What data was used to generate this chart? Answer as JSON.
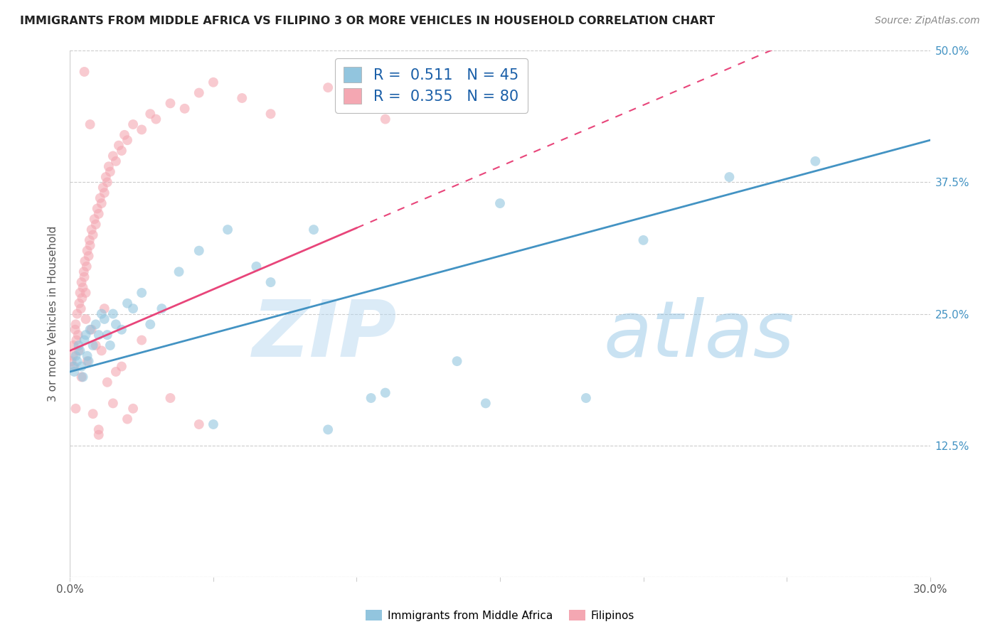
{
  "title": "IMMIGRANTS FROM MIDDLE AFRICA VS FILIPINO 3 OR MORE VEHICLES IN HOUSEHOLD CORRELATION CHART",
  "source": "Source: ZipAtlas.com",
  "ylabel": "3 or more Vehicles in Household",
  "xlim": [
    0.0,
    30.0
  ],
  "ylim": [
    0.0,
    50.0
  ],
  "blue_color": "#92c5de",
  "pink_color": "#f4a7b2",
  "blue_line_color": "#4393c3",
  "pink_line_color": "#e8457a",
  "R_blue": 0.511,
  "N_blue": 45,
  "R_pink": 0.355,
  "N_pink": 80,
  "legend_label_blue": "Immigrants from Middle Africa",
  "legend_label_pink": "Filipinos",
  "watermark_zip": "ZIP",
  "watermark_atlas": "atlas",
  "blue_intercept": 19.5,
  "blue_slope_per30": 22.0,
  "pink_intercept": 21.5,
  "pink_slope_per30": 35.0,
  "pink_solid_end": 10.0,
  "blue_points_x": [
    0.1,
    0.15,
    0.2,
    0.25,
    0.3,
    0.35,
    0.4,
    0.45,
    0.5,
    0.55,
    0.6,
    0.65,
    0.7,
    0.8,
    0.9,
    1.0,
    1.1,
    1.2,
    1.3,
    1.4,
    1.5,
    1.6,
    1.8,
    2.0,
    2.2,
    2.5,
    2.8,
    3.2,
    3.8,
    4.5,
    5.5,
    6.5,
    7.0,
    8.5,
    10.5,
    11.0,
    13.5,
    14.5,
    18.0,
    20.0,
    23.0,
    26.0,
    5.0,
    9.0,
    15.0
  ],
  "blue_points_y": [
    20.0,
    19.5,
    21.0,
    20.5,
    22.0,
    21.5,
    20.0,
    19.0,
    22.5,
    23.0,
    21.0,
    20.5,
    23.5,
    22.0,
    24.0,
    23.0,
    25.0,
    24.5,
    23.0,
    22.0,
    25.0,
    24.0,
    23.5,
    26.0,
    25.5,
    27.0,
    24.0,
    25.5,
    29.0,
    31.0,
    33.0,
    29.5,
    28.0,
    33.0,
    17.0,
    17.5,
    20.5,
    16.5,
    17.0,
    32.0,
    38.0,
    39.5,
    14.5,
    14.0,
    35.5
  ],
  "pink_points_x": [
    0.05,
    0.1,
    0.12,
    0.15,
    0.18,
    0.2,
    0.22,
    0.25,
    0.28,
    0.3,
    0.32,
    0.35,
    0.38,
    0.4,
    0.42,
    0.45,
    0.48,
    0.5,
    0.52,
    0.55,
    0.58,
    0.6,
    0.65,
    0.68,
    0.7,
    0.75,
    0.8,
    0.85,
    0.9,
    0.95,
    1.0,
    1.05,
    1.1,
    1.15,
    1.2,
    1.25,
    1.3,
    1.35,
    1.4,
    1.5,
    1.6,
    1.7,
    1.8,
    1.9,
    2.0,
    2.2,
    2.5,
    2.8,
    3.0,
    3.5,
    4.0,
    4.5,
    5.0,
    6.0,
    7.0,
    9.0,
    11.0,
    0.3,
    0.5,
    0.7,
    0.4,
    0.6,
    0.9,
    1.1,
    1.3,
    0.2,
    0.8,
    1.0,
    1.5,
    2.0,
    0.55,
    0.75,
    1.2,
    1.8,
    2.5,
    3.5,
    1.0,
    4.5,
    2.2,
    1.6
  ],
  "pink_points_y": [
    20.5,
    21.0,
    22.0,
    20.0,
    23.5,
    24.0,
    22.5,
    25.0,
    23.0,
    21.5,
    26.0,
    27.0,
    25.5,
    28.0,
    26.5,
    27.5,
    29.0,
    28.5,
    30.0,
    27.0,
    29.5,
    31.0,
    30.5,
    32.0,
    31.5,
    33.0,
    32.5,
    34.0,
    33.5,
    35.0,
    34.5,
    36.0,
    35.5,
    37.0,
    36.5,
    38.0,
    37.5,
    39.0,
    38.5,
    40.0,
    39.5,
    41.0,
    40.5,
    42.0,
    41.5,
    43.0,
    42.5,
    44.0,
    43.5,
    45.0,
    44.5,
    46.0,
    47.0,
    45.5,
    44.0,
    46.5,
    43.5,
    50.5,
    48.0,
    43.0,
    19.0,
    20.5,
    22.0,
    21.5,
    18.5,
    16.0,
    15.5,
    14.0,
    16.5,
    15.0,
    24.5,
    23.5,
    25.5,
    20.0,
    22.5,
    17.0,
    13.5,
    14.5,
    16.0,
    19.5
  ]
}
